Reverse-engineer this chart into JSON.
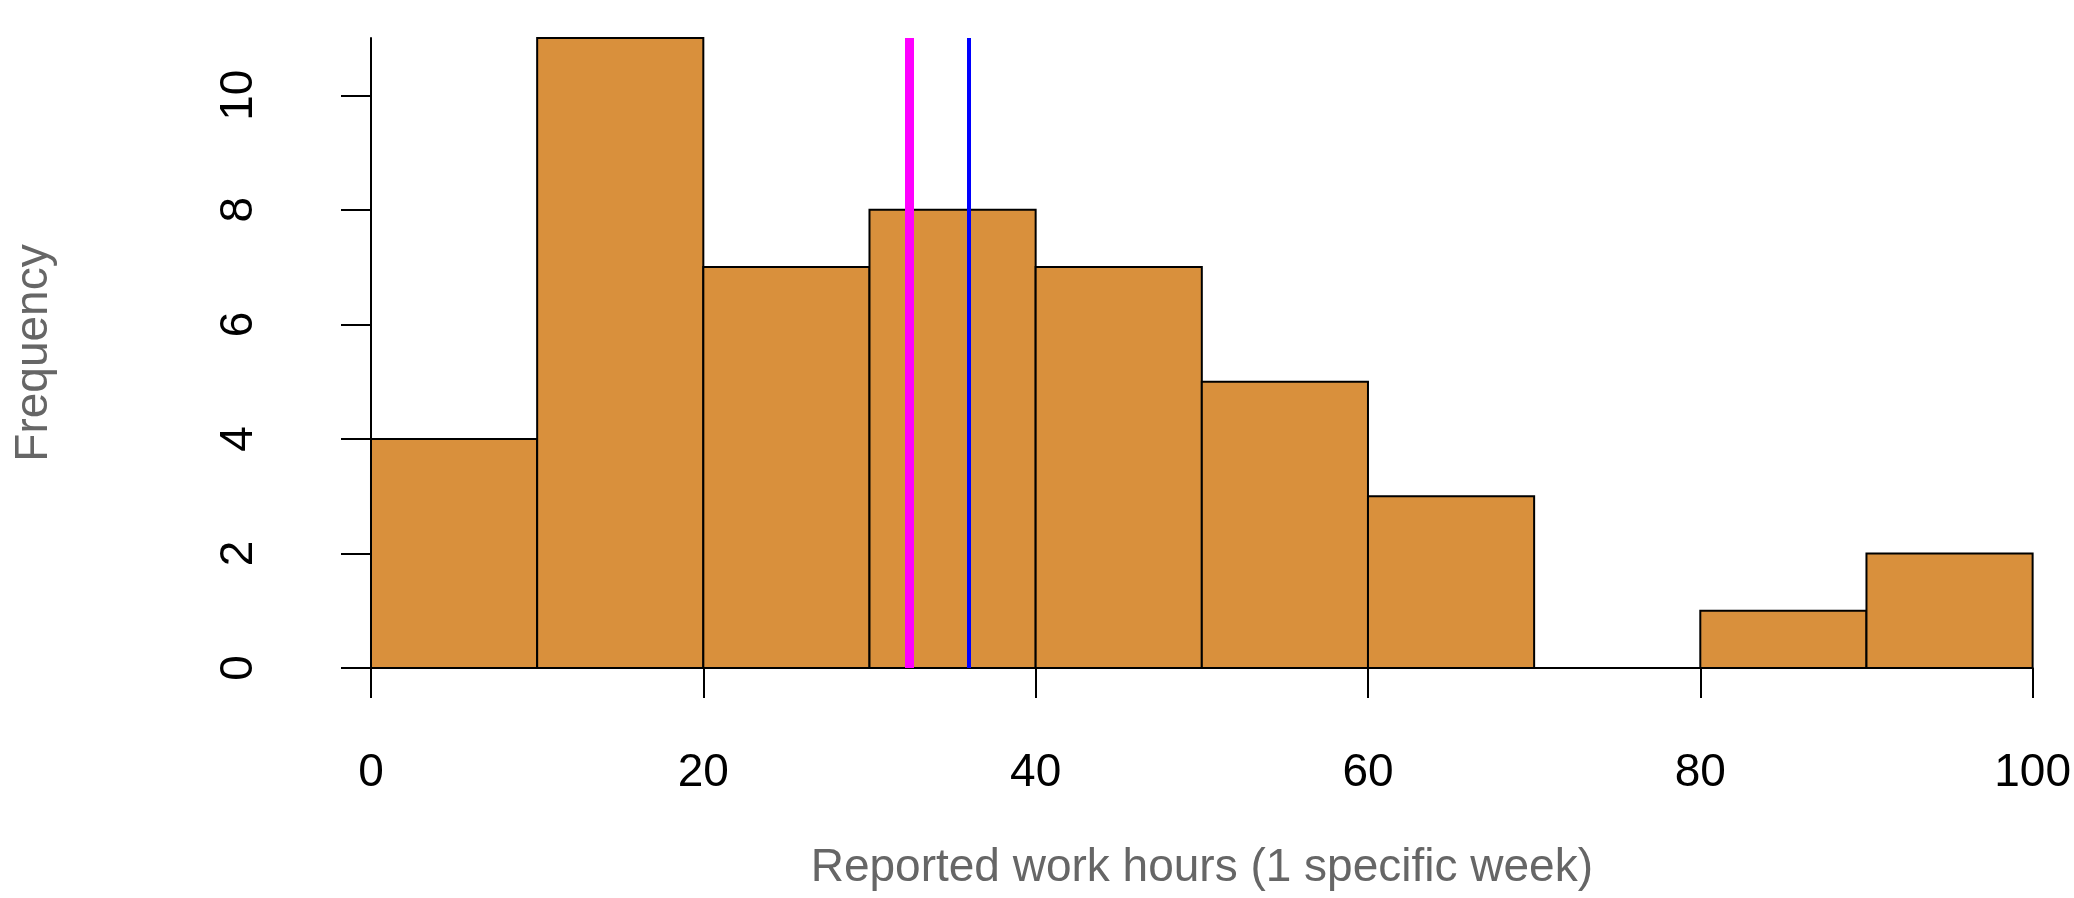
{
  "chart_data": {
    "type": "histogram",
    "xlabel": "Reported work hours (1 specific week)",
    "ylabel": "Frequency",
    "bins": [
      0,
      10,
      20,
      30,
      40,
      50,
      60,
      70,
      80,
      90,
      100
    ],
    "values": [
      4,
      11,
      7,
      8,
      7,
      5,
      3,
      0,
      1,
      2
    ],
    "color": "#d9903c",
    "xlim": [
      0,
      100
    ],
    "xticks": [
      0,
      20,
      40,
      60,
      80,
      100
    ],
    "ylim": [
      0,
      11
    ],
    "yticks": [
      0,
      2,
      4,
      6,
      8,
      10
    ],
    "grid": false,
    "ref_lines": [
      {
        "axis": "x",
        "value": 32.4,
        "color": "#ff00ff",
        "line_style": "solid"
      },
      {
        "axis": "x",
        "value": 36,
        "color": "#0000ff",
        "line_style": "solid"
      }
    ]
  }
}
